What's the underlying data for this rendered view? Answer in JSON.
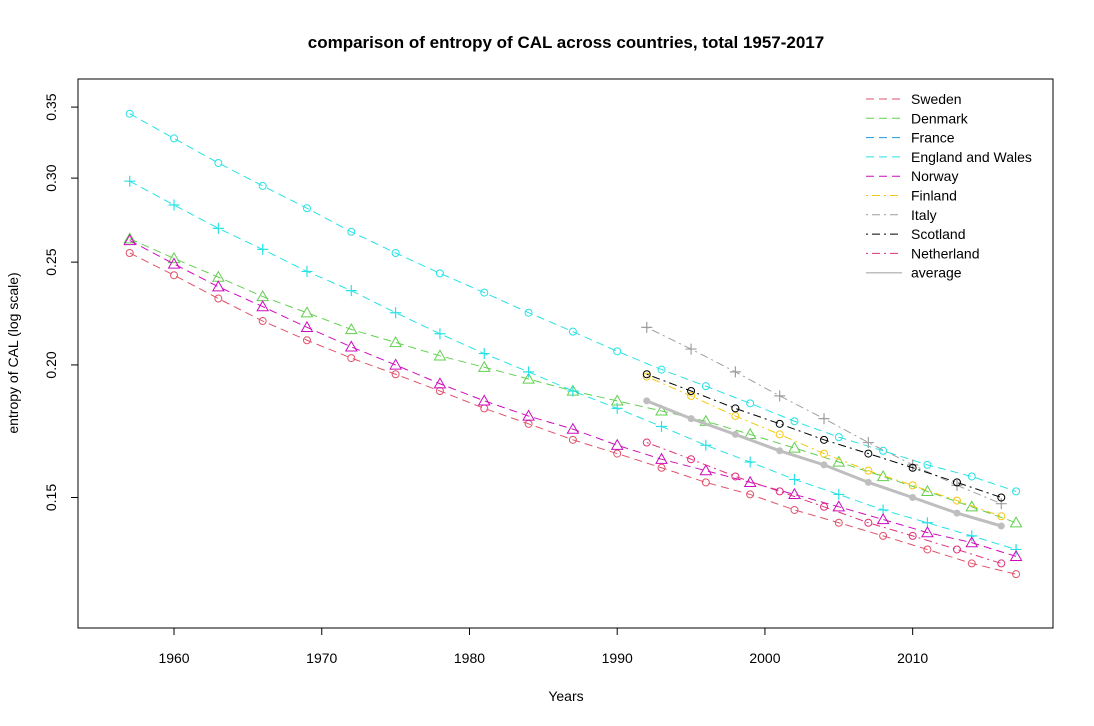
{
  "chart_data": {
    "type": "line",
    "title": "comparison of entropy of CAL across countries, total 1957-2017",
    "xlabel": "Years",
    "ylabel": "entropy of CAL (log scale)",
    "xlim": [
      1953.5,
      2019.5
    ],
    "ylim": [
      0.113,
      0.372
    ],
    "yscale": "log",
    "xticks": [
      1960,
      1970,
      1980,
      1990,
      2000,
      2010
    ],
    "yticks": [
      0.15,
      0.2,
      0.25,
      0.3,
      0.35
    ],
    "ytick_labels": [
      "0.15",
      "0.20",
      "0.25",
      "0.30",
      "0.35"
    ],
    "grid": false,
    "legend_position": "top-right",
    "series": [
      {
        "name": "Sweden",
        "color": "#DF536B",
        "marker": "circle",
        "dash": "dashed",
        "x": [
          1957,
          1960,
          1963,
          1966,
          1969,
          1972,
          1975,
          1978,
          1981,
          1984,
          1987,
          1990,
          1993,
          1996,
          1999,
          2002,
          2005,
          2008,
          2011,
          2014,
          2017
        ],
        "y": [
          0.255,
          0.243,
          0.231,
          0.22,
          0.211,
          0.203,
          0.196,
          0.189,
          0.182,
          0.176,
          0.17,
          0.165,
          0.16,
          0.155,
          0.151,
          0.146,
          0.142,
          0.138,
          0.134,
          0.13,
          0.127
        ]
      },
      {
        "name": "Denmark",
        "color": "#61D04F",
        "marker": "triangle",
        "dash": "dashed",
        "x": [
          1957,
          1960,
          1963,
          1966,
          1969,
          1972,
          1975,
          1978,
          1981,
          1984,
          1987,
          1990,
          1993,
          1996,
          1999,
          2002,
          2005,
          2008,
          2011,
          2014,
          2017
        ],
        "y": [
          0.263,
          0.252,
          0.242,
          0.232,
          0.224,
          0.216,
          0.21,
          0.204,
          0.199,
          0.194,
          0.189,
          0.185,
          0.181,
          0.177,
          0.172,
          0.167,
          0.162,
          0.157,
          0.152,
          0.147,
          0.142
        ]
      },
      {
        "name": "France",
        "color": "#2297E6",
        "marker": "none",
        "dash": "dashed",
        "x": [],
        "y": []
      },
      {
        "name": "England and Wales",
        "color": "#28E2E5",
        "marker": "circle",
        "dash": "dashed",
        "x": [
          1957,
          1960,
          1963,
          1966,
          1969,
          1972,
          1975,
          1978,
          1981,
          1984,
          1987,
          1990,
          1993,
          1996,
          1999,
          2002,
          2005,
          2008,
          2011,
          2014,
          2017
        ],
        "y": [
          0.345,
          0.327,
          0.31,
          0.295,
          0.281,
          0.267,
          0.255,
          0.244,
          0.234,
          0.224,
          0.215,
          0.206,
          0.198,
          0.191,
          0.184,
          0.177,
          0.171,
          0.166,
          0.161,
          0.157,
          0.152
        ]
      },
      {
        "name": "England and Wales",
        "color": "#28E2E5",
        "marker": "plus",
        "dash": "dashed",
        "x": [
          1957,
          1960,
          1963,
          1966,
          1969,
          1972,
          1975,
          1978,
          1981,
          1984,
          1987,
          1990,
          1993,
          1996,
          1999,
          2002,
          2005,
          2008,
          2011,
          2014,
          2017
        ],
        "y": [
          0.298,
          0.283,
          0.269,
          0.257,
          0.245,
          0.235,
          0.224,
          0.214,
          0.205,
          0.197,
          0.189,
          0.182,
          0.175,
          0.168,
          0.162,
          0.156,
          0.151,
          0.146,
          0.142,
          0.138,
          0.134
        ]
      },
      {
        "name": "Norway",
        "color": "#CD0BBC",
        "marker": "triangle",
        "dash": "dashed",
        "x": [
          1957,
          1960,
          1963,
          1966,
          1969,
          1972,
          1975,
          1978,
          1981,
          1984,
          1987,
          1990,
          1993,
          1996,
          1999,
          2002,
          2005,
          2008,
          2011,
          2014,
          2017
        ],
        "y": [
          0.262,
          0.249,
          0.237,
          0.227,
          0.217,
          0.208,
          0.2,
          0.192,
          0.185,
          0.179,
          0.174,
          0.168,
          0.163,
          0.159,
          0.155,
          0.151,
          0.147,
          0.143,
          0.139,
          0.136,
          0.132
        ]
      },
      {
        "name": "Finland",
        "color": "#F5C710",
        "marker": "circle",
        "dash": "dotdash",
        "x": [
          1992,
          1995,
          1998,
          2001,
          2004,
          2007,
          2010,
          2013,
          2016
        ],
        "y": [
          0.195,
          0.187,
          0.179,
          0.172,
          0.165,
          0.159,
          0.154,
          0.149,
          0.144
        ]
      },
      {
        "name": "Italy",
        "color": "#9E9E9E",
        "marker": "plus",
        "dash": "dotdash",
        "x": [
          1992,
          1995,
          1998,
          2001,
          2004,
          2007,
          2010,
          2013,
          2016
        ],
        "y": [
          0.217,
          0.207,
          0.197,
          0.187,
          0.178,
          0.169,
          0.161,
          0.154,
          0.148
        ]
      },
      {
        "name": "Scotland",
        "color": "#000000",
        "marker": "circle",
        "dash": "dotdash",
        "x": [
          1992,
          1995,
          1998,
          2001,
          2004,
          2007,
          2010,
          2013,
          2016
        ],
        "y": [
          0.196,
          0.189,
          0.182,
          0.176,
          0.17,
          0.165,
          0.16,
          0.155,
          0.15
        ]
      },
      {
        "name": "Netherland",
        "color": "#E0317A",
        "marker": "circle",
        "dash": "dotdash",
        "x": [
          1992,
          1995,
          1998,
          2001,
          2004,
          2007,
          2010,
          2013,
          2016
        ],
        "y": [
          0.169,
          0.163,
          0.157,
          0.152,
          0.147,
          0.142,
          0.138,
          0.134,
          0.13
        ]
      },
      {
        "name": "average",
        "color": "#BEBEBE",
        "marker": "filled-circle",
        "dash": "solid",
        "x": [
          1992,
          1995,
          1998,
          2001,
          2004,
          2007,
          2010,
          2013,
          2016
        ],
        "y": [
          0.185,
          0.178,
          0.172,
          0.166,
          0.161,
          0.155,
          0.15,
          0.145,
          0.141
        ]
      }
    ],
    "legend": [
      {
        "name": "Sweden",
        "color": "#DF536B",
        "dash": "dashed"
      },
      {
        "name": "Denmark",
        "color": "#61D04F",
        "dash": "dashed"
      },
      {
        "name": "France",
        "color": "#2297E6",
        "dash": "dashed"
      },
      {
        "name": "England and Wales",
        "color": "#28E2E5",
        "dash": "dashed"
      },
      {
        "name": "Norway",
        "color": "#CD0BBC",
        "dash": "dashed"
      },
      {
        "name": "Finland",
        "color": "#F5C710",
        "dash": "dotdash"
      },
      {
        "name": "Italy",
        "color": "#9E9E9E",
        "dash": "dotdash"
      },
      {
        "name": "Scotland",
        "color": "#000000",
        "dash": "dotdash"
      },
      {
        "name": "Netherland",
        "color": "#E0317A",
        "dash": "dotdash"
      },
      {
        "name": "average",
        "color": "#BEBEBE",
        "dash": "solid"
      }
    ]
  }
}
